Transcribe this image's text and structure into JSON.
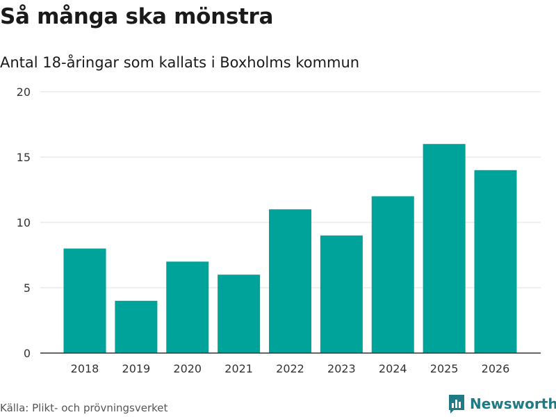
{
  "header": {
    "title": "Så många ska mönstra",
    "subtitle": "Antal 18-åringar som kallats i Boxholms kommun"
  },
  "footer": {
    "source": "Källa: Plikt- och prövningsverket",
    "brand": "Newsworthy",
    "brand_icon": "bar-chart-logo-icon"
  },
  "colors": {
    "bar": "#00a39a",
    "grid": "#e0e0e0",
    "axis": "#333333",
    "brand": "#1f7a86"
  },
  "chart_data": {
    "type": "bar",
    "title": "Så många ska mönstra",
    "subtitle": "Antal 18-åringar som kallats i Boxholms kommun",
    "xlabel": "",
    "ylabel": "",
    "categories": [
      "2018",
      "2019",
      "2020",
      "2021",
      "2022",
      "2023",
      "2024",
      "2025",
      "2026"
    ],
    "values": [
      8,
      4,
      7,
      6,
      11,
      9,
      12,
      16,
      14
    ],
    "ylim": [
      0,
      20
    ],
    "yticks": [
      0,
      5,
      10,
      15,
      20
    ],
    "grid": true
  }
}
